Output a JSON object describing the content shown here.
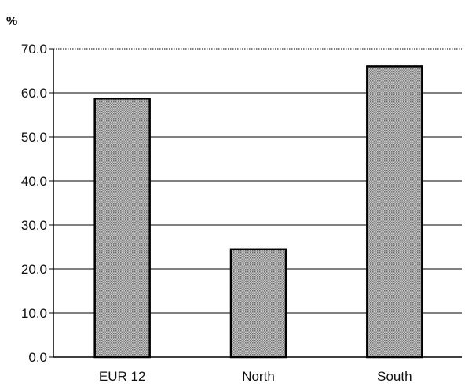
{
  "chart_data": {
    "type": "bar",
    "unit_label": "%",
    "categories": [
      "EUR 12",
      "North",
      "South"
    ],
    "values": [
      58.7,
      24.5,
      66.0
    ],
    "ylim": [
      0,
      70
    ],
    "yticks": [
      0,
      10,
      20,
      30,
      40,
      50,
      60,
      70
    ],
    "ytick_labels": [
      "0.0",
      "10.0",
      "20.0",
      "30.0",
      "40.0",
      "50.0",
      "60.0",
      "70.0"
    ],
    "grid": true,
    "bar_fill": "#b0b0b0",
    "bar_stroke": "#000000"
  }
}
